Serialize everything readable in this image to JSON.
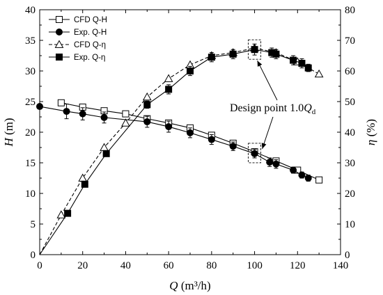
{
  "chart_data": {
    "type": "line",
    "x_axis": {
      "label_var": "Q",
      "label_unit": "(m³/h)",
      "range": [
        0,
        140
      ],
      "ticks": [
        0,
        20,
        40,
        60,
        80,
        100,
        120,
        140
      ]
    },
    "y_axis_left": {
      "label_var": "H",
      "label_unit": "(m)",
      "range": [
        0,
        40
      ],
      "ticks": [
        0,
        5,
        10,
        15,
        20,
        25,
        30,
        35,
        40
      ]
    },
    "y_axis_right": {
      "label_var": "η",
      "label_unit": "(%)",
      "range": [
        0,
        80
      ],
      "ticks": [
        0,
        10,
        20,
        30,
        40,
        50,
        60,
        70,
        80
      ]
    },
    "grid": false,
    "legend_position": "top-left",
    "series": [
      {
        "name": "CFD Q-H",
        "axis": "left",
        "marker": "open-square",
        "line": "solid",
        "x": [
          10,
          20,
          30,
          40,
          50,
          60,
          70,
          80,
          90,
          100,
          110,
          120,
          130
        ],
        "y": [
          24.8,
          24.1,
          23.5,
          23.0,
          22.2,
          21.5,
          20.7,
          19.5,
          18.2,
          16.8,
          15.3,
          13.8,
          12.2
        ]
      },
      {
        "name": "Exp. Q-H",
        "axis": "left",
        "marker": "filled-circle",
        "line": "solid",
        "x": [
          0,
          12.5,
          20,
          30,
          50,
          60,
          70,
          80,
          90,
          100,
          107,
          110,
          118,
          122,
          125
        ],
        "y": [
          24.2,
          23.4,
          23.0,
          22.4,
          21.7,
          20.9,
          19.9,
          18.8,
          17.7,
          16.5,
          15.1,
          14.8,
          13.8,
          13.0,
          12.5
        ],
        "error": [
          0,
          1.2,
          1.0,
          0.9,
          0.9,
          0.9,
          0.8,
          0.8,
          0.7,
          0.7,
          0.7,
          0.7,
          0.5,
          0.5,
          0.5
        ]
      },
      {
        "name": "CFD Q-η",
        "axis": "right",
        "marker": "open-triangle",
        "line": "dashed",
        "x": [
          0,
          10,
          20,
          30,
          40,
          50,
          60,
          70,
          80,
          90,
          100,
          110,
          120,
          130
        ],
        "y": [
          0,
          13.0,
          25.0,
          35.0,
          43.0,
          51.5,
          57.5,
          62.0,
          65.0,
          66.0,
          67.5,
          66.0,
          63.0,
          59.0
        ]
      },
      {
        "name": "Exp. Q-η",
        "axis": "right",
        "marker": "filled-square",
        "line": "solid",
        "x": [
          0,
          13,
          21,
          31,
          50,
          60,
          70,
          80,
          90,
          100,
          108,
          110,
          118,
          122,
          125
        ],
        "y": [
          0,
          13.5,
          23.0,
          33.0,
          49.0,
          54.0,
          60.0,
          64.5,
          65.5,
          67.0,
          66.0,
          65.5,
          63.5,
          62.5,
          61.0
        ],
        "error": [
          0,
          0,
          0,
          0,
          1.2,
          1.5,
          1.5,
          1.5,
          1.5,
          1.8,
          1.5,
          1.5,
          1.5,
          1.5,
          1.2
        ]
      }
    ],
    "annotation": {
      "text_main": "Design point 1.0",
      "text_var": "Q",
      "text_sub": "d",
      "boxes": [
        {
          "x": 100,
          "y": 16.6,
          "axis": "left"
        },
        {
          "x": 100,
          "y": 67.0,
          "axis": "right"
        }
      ]
    }
  }
}
